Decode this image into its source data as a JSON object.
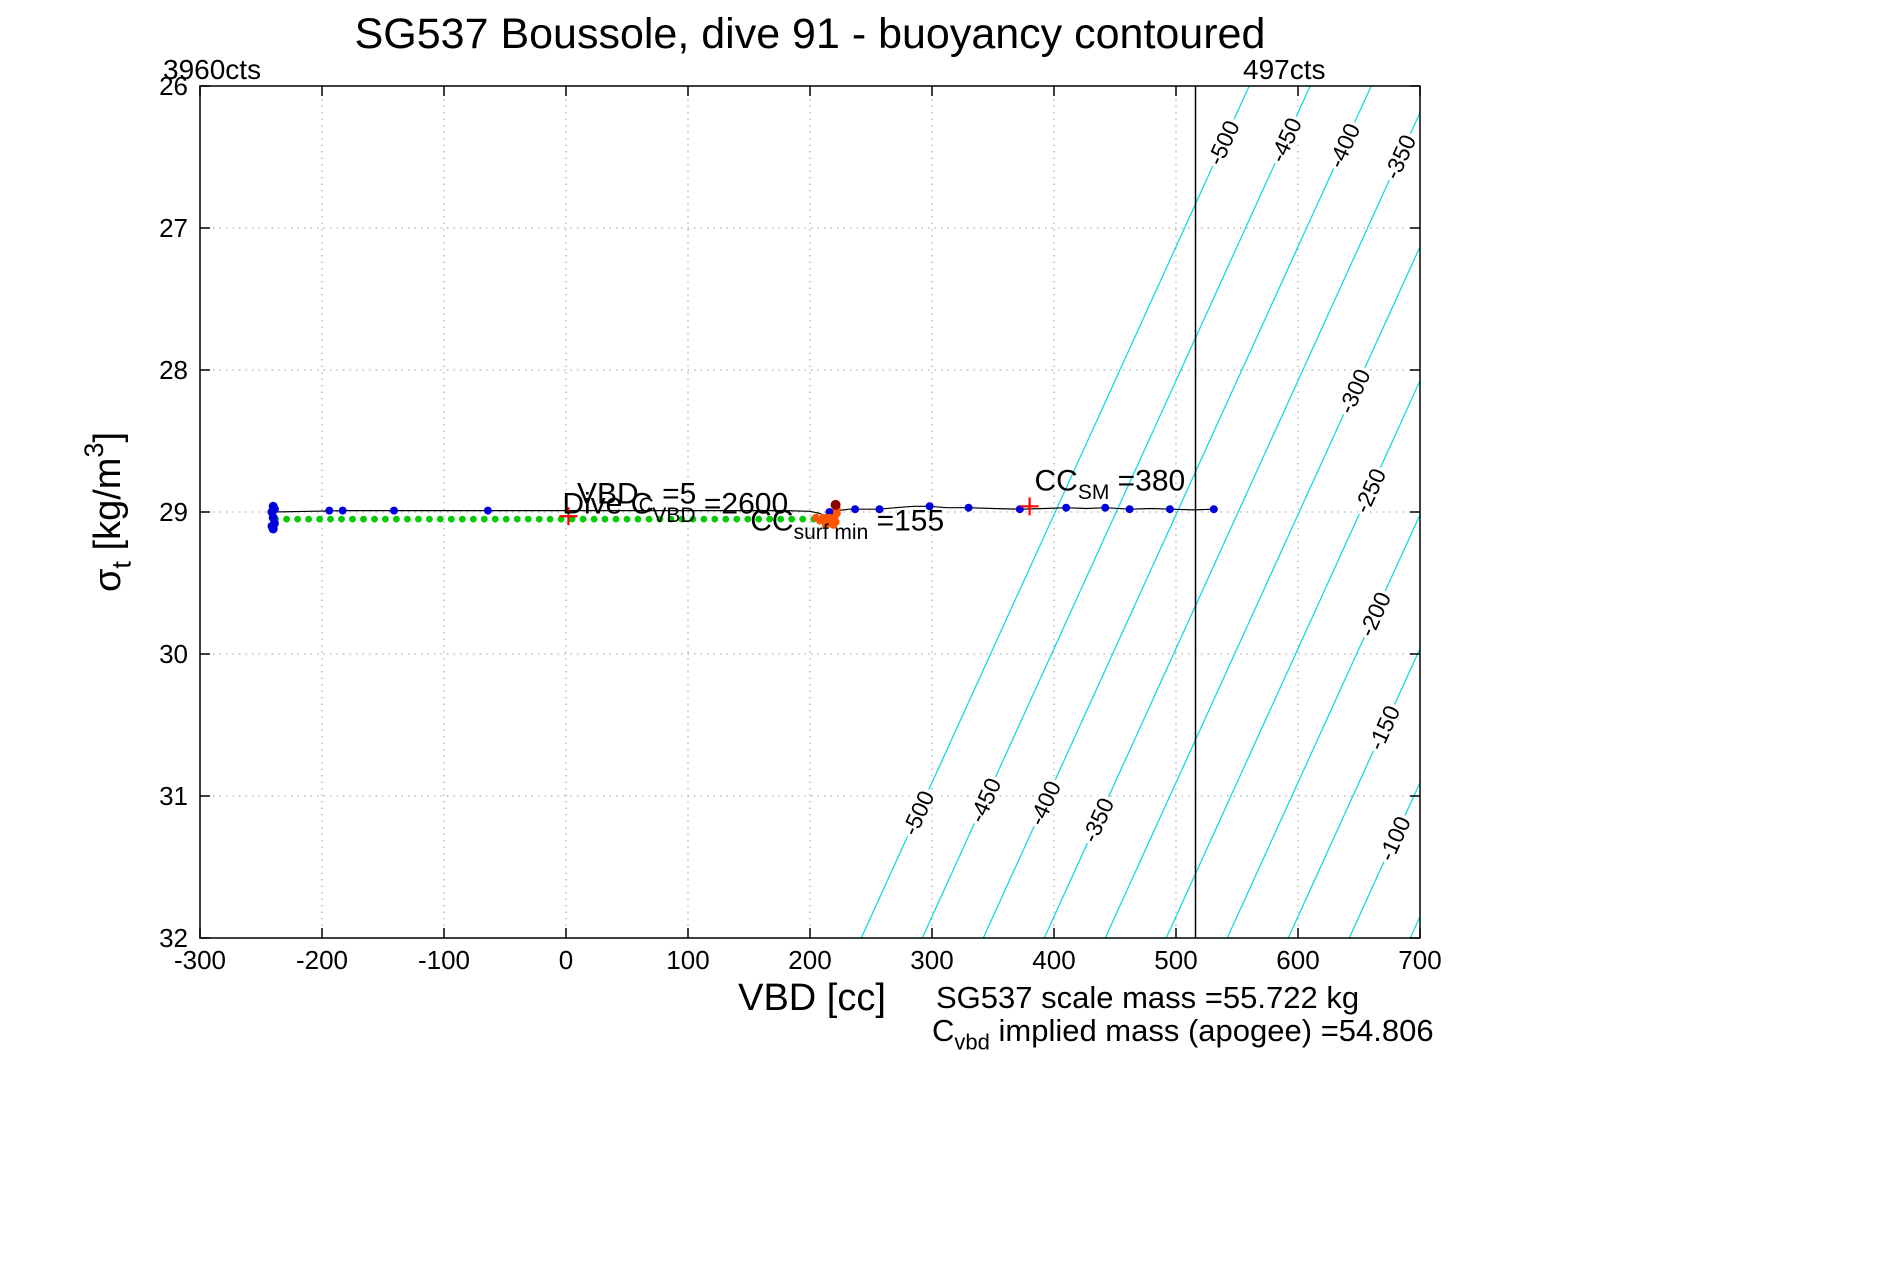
{
  "chart_data": {
    "type": "scatter",
    "title": "SG537 Boussole, dive 91 - buoyancy contoured",
    "xlabel": "VBD [cc]",
    "ylabel": "sigma_t [kg/m^3]",
    "ylabel_segments": [
      {
        "t": "σ"
      },
      {
        "t": "t",
        "sub": true
      },
      {
        "t": " [kg/m"
      },
      {
        "t": "3",
        "sup": true
      },
      {
        "t": "]"
      }
    ],
    "xlim": [
      -300,
      700
    ],
    "ylim": [
      26,
      32
    ],
    "y_axis_direction": "reversed",
    "x_ticks": [
      -300,
      -200,
      -100,
      0,
      100,
      200,
      300,
      400,
      500,
      600,
      700
    ],
    "y_ticks": [
      26,
      27,
      28,
      29,
      30,
      31,
      32
    ],
    "grid": "dotted",
    "vertical_line_x": 516,
    "colors": {
      "contour_line": "#14dbe6",
      "contour_label": "#333333",
      "trajectory": "#000000",
      "sample_dots": "#0000dd",
      "pump_line": "#00cc00",
      "surface_cluster": "#ff5500",
      "apogee_dot": "#8b0000",
      "red_annotation": "#ff0000",
      "vertical_line": "#000000"
    },
    "contours": {
      "dx_per_sigma_decrease": 53,
      "levels": [
        {
          "value": -500,
          "x_at_sigma32": 242
        },
        {
          "value": -450,
          "x_at_sigma32": 292
        },
        {
          "value": -400,
          "x_at_sigma32": 342
        },
        {
          "value": -350,
          "x_at_sigma32": 392
        },
        {
          "value": -300,
          "x_at_sigma32": 442
        },
        {
          "value": -250,
          "x_at_sigma32": 492
        },
        {
          "value": -200,
          "x_at_sigma32": 542
        },
        {
          "value": -150,
          "x_at_sigma32": 592
        },
        {
          "value": -100,
          "x_at_sigma32": 642
        },
        {
          "value": -50,
          "x_at_sigma32": 692
        }
      ],
      "labels": [
        {
          "text": "-500",
          "level": -500,
          "sigma": 26.4
        },
        {
          "text": "-450",
          "level": -450,
          "sigma": 26.38
        },
        {
          "text": "-400",
          "level": -400,
          "sigma": 26.42
        },
        {
          "text": "-350",
          "level": -350,
          "sigma": 26.5
        },
        {
          "text": "-300",
          "level": -300,
          "sigma": 28.15
        },
        {
          "text": "-250",
          "level": -250,
          "sigma": 28.85
        },
        {
          "text": "-200",
          "level": -200,
          "sigma": 29.72
        },
        {
          "text": "-150",
          "level": -150,
          "sigma": 30.52
        },
        {
          "text": "-100",
          "level": -100,
          "sigma": 31.3
        },
        {
          "text": "-500",
          "level": -500,
          "sigma": 31.12
        },
        {
          "text": "-450",
          "level": -450,
          "sigma": 31.03
        },
        {
          "text": "-400",
          "level": -400,
          "sigma": 31.05
        },
        {
          "text": "-350",
          "level": -350,
          "sigma": 31.17
        }
      ]
    },
    "series": {
      "trajectory": {
        "points": [
          [
            -240,
            29.0
          ],
          [
            -210,
            28.995
          ],
          [
            -180,
            28.99
          ],
          [
            -150,
            28.99
          ],
          [
            -120,
            28.99
          ],
          [
            -90,
            28.99
          ],
          [
            -64,
            28.99
          ],
          [
            -30,
            28.99
          ],
          [
            0,
            28.99
          ],
          [
            30,
            28.99
          ],
          [
            60,
            28.99
          ],
          [
            90,
            28.99
          ],
          [
            120,
            28.99
          ],
          [
            150,
            28.99
          ],
          [
            180,
            28.99
          ],
          [
            200,
            28.995
          ],
          [
            208,
            29.01
          ],
          [
            214,
            29.04
          ],
          [
            218,
            29.06
          ],
          [
            220,
            29.03
          ],
          [
            223,
            28.99
          ],
          [
            232,
            28.98
          ],
          [
            245,
            28.98
          ],
          [
            257,
            28.98
          ],
          [
            270,
            28.97
          ],
          [
            285,
            28.96
          ],
          [
            298,
            28.96
          ],
          [
            312,
            28.97
          ],
          [
            330,
            28.97
          ],
          [
            350,
            28.975
          ],
          [
            372,
            28.98
          ],
          [
            392,
            28.975
          ],
          [
            410,
            28.97
          ],
          [
            427,
            28.975
          ],
          [
            442,
            28.97
          ],
          [
            462,
            28.98
          ],
          [
            480,
            28.975
          ],
          [
            495,
            28.98
          ],
          [
            515,
            28.985
          ],
          [
            531,
            28.98
          ]
        ]
      },
      "sample_dots": {
        "points": [
          [
            -194,
            28.99
          ],
          [
            -183,
            28.99
          ],
          [
            -141,
            28.99
          ],
          [
            -64,
            28.99
          ],
          [
            216,
            29.0
          ],
          [
            237,
            28.98
          ],
          [
            257,
            28.98
          ],
          [
            298,
            28.96
          ],
          [
            330,
            28.97
          ],
          [
            372,
            28.98
          ],
          [
            410,
            28.97
          ],
          [
            442,
            28.97
          ],
          [
            462,
            28.98
          ],
          [
            495,
            28.98
          ],
          [
            531,
            28.98
          ]
        ]
      },
      "start_cluster": {
        "points": [
          [
            -240,
            28.96
          ],
          [
            -241,
            29.0
          ],
          [
            -240,
            29.04
          ],
          [
            -239,
            29.08
          ],
          [
            -240,
            29.12
          ],
          [
            -241,
            29.1
          ],
          [
            -239,
            28.98
          ]
        ]
      },
      "pump_dots": {
        "sigma": 29.05,
        "x_start": -238,
        "x_end": 205,
        "x_step": 9
      },
      "surface_cluster": {
        "points": [
          [
            205,
            29.04
          ],
          [
            208,
            29.06
          ],
          [
            211,
            29.04
          ],
          [
            214,
            29.07
          ],
          [
            216,
            29.04
          ],
          [
            218,
            29.06
          ],
          [
            220,
            29.04
          ],
          [
            221,
            29.07
          ],
          [
            219,
            29.09
          ],
          [
            213,
            29.09
          ],
          [
            222,
            29.01
          ],
          [
            222,
            28.98
          ]
        ]
      },
      "apogee_dot": {
        "x": 221,
        "sigma": 28.95
      },
      "red_crosses": [
        [
          2,
          29.03
        ],
        [
          380,
          28.96
        ]
      ]
    },
    "annotations": {
      "counts_left": "3960cts",
      "counts_right": "497cts",
      "dive_cvbd": {
        "segments": [
          {
            "t": "Dive C"
          },
          {
            "t": "VBD",
            "sub": true
          },
          {
            "t": " =2600"
          }
        ],
        "x": -3,
        "sigma": 29.01,
        "color": "#000000"
      },
      "vbd_c": {
        "segments": [
          {
            "t": "VBD"
          },
          {
            "t": "C",
            "sub": true
          },
          {
            "t": " =5"
          }
        ],
        "x": 9,
        "sigma": 28.94,
        "color": "#ff0000"
      },
      "cc_surf_min": {
        "segments": [
          {
            "t": "CC"
          },
          {
            "t": "surf min",
            "sub": true
          },
          {
            "t": " =155"
          }
        ],
        "x": 151,
        "sigma": 29.13,
        "color": "#ff0000"
      },
      "cc_sm": {
        "segments": [
          {
            "t": "CC"
          },
          {
            "t": "SM",
            "sub": true
          },
          {
            "t": " =380"
          }
        ],
        "x": 384,
        "sigma": 28.85,
        "color": "#ff0000"
      },
      "scale_mass": "SG537 scale mass =55.722 kg",
      "implied_mass_segments": [
        {
          "t": "C"
        },
        {
          "t": "vbd",
          "sub": true
        },
        {
          "t": " implied mass (apogee) =54.806"
        }
      ]
    }
  }
}
